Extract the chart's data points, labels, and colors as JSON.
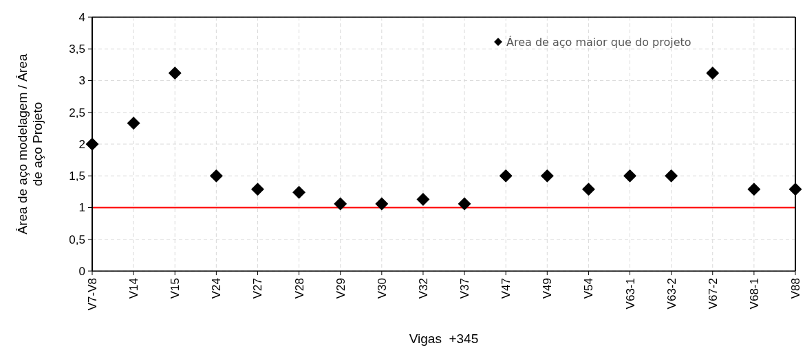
{
  "chart_data": {
    "type": "scatter",
    "xlabel": "Vigas  +345",
    "ylabel": "Área de aço modelagem / Área de aço Projeto",
    "categories": [
      "V7-V8",
      "V14",
      "V15",
      "V24",
      "V27",
      "V28",
      "V29",
      "V30",
      "V32",
      "V37",
      "V47",
      "V49",
      "V54",
      "V63-1",
      "V63-2",
      "V67-2",
      "V68-1",
      "V88"
    ],
    "series": [
      {
        "name": "Área de aço maior que do projeto",
        "color": "#000000",
        "values": [
          2,
          2.33,
          3.12,
          1.5,
          1.29,
          1.24,
          1.06,
          1.06,
          1.13,
          1.06,
          1.5,
          1.5,
          1.29,
          1.5,
          1.5,
          3.12,
          1.29,
          1.29
        ]
      }
    ],
    "ylim": [
      0,
      4
    ],
    "yticks": [
      0,
      {
        "value": 0.5,
        "label": "0,5"
      },
      1,
      {
        "value": 1.5,
        "label": "1,5"
      },
      2,
      {
        "value": 2.5,
        "label": "2,5"
      },
      3,
      {
        "value": 3.5,
        "label": "3,5"
      },
      4
    ],
    "ref_lines": [
      {
        "axis": "y",
        "value": 1,
        "color": "#ff0000"
      }
    ],
    "grid": true,
    "legend": "top right",
    "marker": "diamond"
  }
}
